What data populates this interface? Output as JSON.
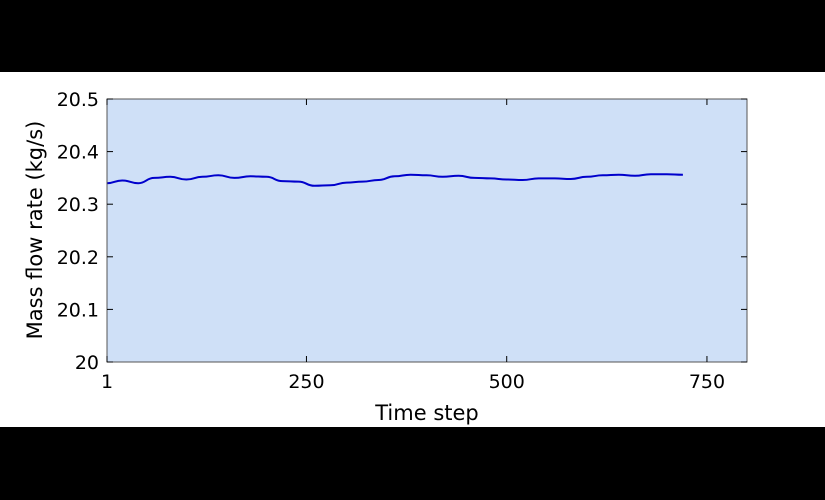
{
  "chart_data": {
    "type": "line",
    "title": "",
    "xlabel": "Time step",
    "ylabel": "Mass flow rate (kg/s)",
    "xlim": [
      1,
      800
    ],
    "ylim": [
      20,
      20.5
    ],
    "x_ticks": [
      1,
      250,
      500,
      750
    ],
    "x_tick_labels": [
      "1",
      "250",
      "500",
      "750"
    ],
    "y_ticks": [
      20,
      20.1,
      20.2,
      20.3,
      20.4,
      20.5
    ],
    "y_tick_labels": [
      "20",
      "20.1",
      "20.2",
      "20.3",
      "20.4",
      "20.5"
    ],
    "grid": false,
    "legend": "none",
    "colors": {
      "plot_background": "#cfe0f7",
      "line": "#0000cc",
      "frame": "#555555"
    },
    "series": [
      {
        "x": [
          1,
          20,
          40,
          60,
          80,
          100,
          120,
          140,
          160,
          180,
          200,
          220,
          240,
          260,
          280,
          300,
          320,
          340,
          360,
          380,
          400,
          420,
          440,
          460,
          480,
          500,
          520,
          540,
          560,
          580,
          600,
          620,
          640,
          660,
          680,
          700,
          720
        ],
        "y": [
          20.34,
          20.345,
          20.34,
          20.35,
          20.352,
          20.347,
          20.352,
          20.355,
          20.35,
          20.353,
          20.352,
          20.344,
          20.343,
          20.335,
          20.336,
          20.341,
          20.343,
          20.346,
          20.353,
          20.356,
          20.355,
          20.352,
          20.354,
          20.35,
          20.349,
          20.347,
          20.346,
          20.349,
          20.349,
          20.348,
          20.352,
          20.355,
          20.356,
          20.354,
          20.357,
          20.357,
          20.356
        ]
      }
    ]
  }
}
